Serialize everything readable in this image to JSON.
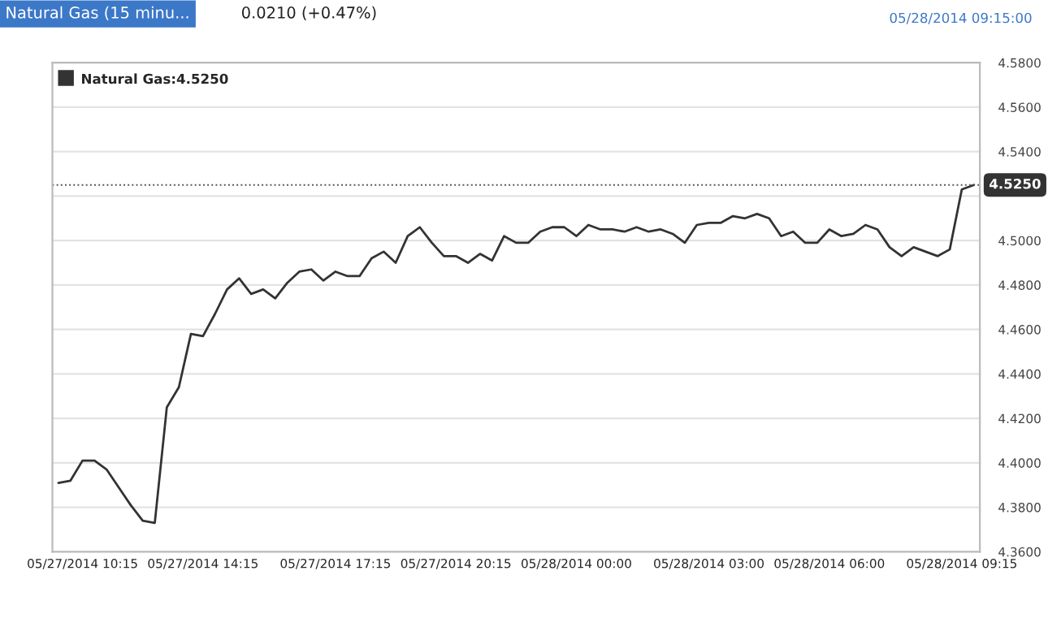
{
  "chart_data": {
    "type": "line",
    "title": "Natural Gas (15 minu...",
    "subtitle": "0.0210 (+0.47%)",
    "annotations": [
      "05/28/2014 09:15:00"
    ],
    "categories": [
      null,
      null,
      "05/27/2014 10:15",
      null,
      null,
      null,
      null,
      null,
      null,
      null,
      null,
      null,
      "05/27/2014 14:15",
      null,
      null,
      null,
      null,
      null,
      null,
      null,
      null,
      null,
      null,
      "05/27/2014 17:15",
      null,
      null,
      null,
      null,
      null,
      null,
      null,
      null,
      null,
      "05/27/2014 20:15",
      null,
      null,
      null,
      null,
      null,
      null,
      null,
      null,
      null,
      "05/28/2014 00:00",
      null,
      null,
      null,
      null,
      null,
      null,
      null,
      null,
      null,
      null,
      "05/28/2014 03:00",
      null,
      null,
      null,
      null,
      null,
      null,
      null,
      null,
      null,
      "05/28/2014 06:00",
      null,
      null,
      null,
      null,
      null,
      null,
      null,
      null,
      null,
      null,
      "05/28/2014 09:15",
      null
    ],
    "series": [
      {
        "name": "Natural Gas:4.5250",
        "color": "#333333",
        "values": [
          4.391,
          4.392,
          4.401,
          4.401,
          4.397,
          4.389,
          4.381,
          4.374,
          4.373,
          4.425,
          4.434,
          4.458,
          4.457,
          4.467,
          4.478,
          4.483,
          4.476,
          4.478,
          4.474,
          4.481,
          4.486,
          4.487,
          4.482,
          4.486,
          4.484,
          4.484,
          4.492,
          4.495,
          4.49,
          4.502,
          4.506,
          4.499,
          4.493,
          4.493,
          4.49,
          4.494,
          4.491,
          4.502,
          4.499,
          4.499,
          4.504,
          4.506,
          4.506,
          4.502,
          4.507,
          4.505,
          4.505,
          4.504,
          4.506,
          4.504,
          4.505,
          4.503,
          4.499,
          4.507,
          4.508,
          4.508,
          4.511,
          4.51,
          4.512,
          4.51,
          4.502,
          4.504,
          4.499,
          4.499,
          4.505,
          4.502,
          4.503,
          4.507,
          4.505,
          4.497,
          4.493,
          4.497,
          4.495,
          4.493,
          4.496,
          4.523,
          4.525
        ]
      }
    ],
    "ylim": [
      4.36,
      4.58
    ],
    "yticks": [
      {
        "value": 4.36,
        "label": "4.3600"
      },
      {
        "value": 4.38,
        "label": "4.3800"
      },
      {
        "value": 4.4,
        "label": "4.4000"
      },
      {
        "value": 4.42,
        "label": "4.4200"
      },
      {
        "value": 4.44,
        "label": "4.4400"
      },
      {
        "value": 4.46,
        "label": "4.4600"
      },
      {
        "value": 4.48,
        "label": "4.4800"
      },
      {
        "value": 4.5,
        "label": "4.5000"
      },
      {
        "value": 4.52,
        "label": null
      },
      {
        "value": 4.54,
        "label": "4.5400"
      },
      {
        "value": 4.56,
        "label": "4.5600"
      },
      {
        "value": 4.58,
        "label": "4.5800"
      }
    ],
    "ref_lines": [
      {
        "axis": "y",
        "value": 4.525,
        "label": "4.5250",
        "color": "#555555",
        "line_style": "dotted"
      }
    ],
    "grid": "y",
    "legend": "top left",
    "marker": "none",
    "line_style": "solid"
  }
}
